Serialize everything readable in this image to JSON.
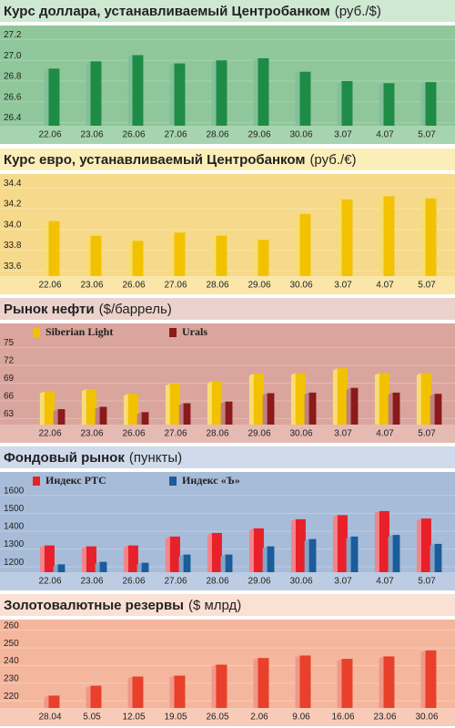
{
  "chart_data": [
    {
      "type": "bar",
      "title": "Курс доллара, устанавливаемый Центробанком",
      "unit": "(руб./$)",
      "categories": [
        "22.06",
        "23.06",
        "26.06",
        "27.06",
        "28.06",
        "29.06",
        "30.06",
        "3.07",
        "4.07",
        "5.07"
      ],
      "values": [
        26.92,
        26.99,
        27.05,
        26.97,
        27.0,
        27.02,
        26.89,
        26.8,
        26.78,
        26.79
      ],
      "color": "#1e8c46",
      "ylim": [
        26.37,
        27.3
      ],
      "yticks": [
        26.4,
        26.6,
        26.8,
        {
          "value": 27,
          "label": "27.0"
        },
        27.2
      ]
    },
    {
      "type": "bar",
      "title": "Курс евро, устанавливаемый Центробанком",
      "unit": "(руб./€)",
      "categories": [
        "22.06",
        "23.06",
        "26.06",
        "27.06",
        "28.06",
        "29.06",
        "30.06",
        "3.07",
        "4.07",
        "5.07"
      ],
      "values": [
        34.08,
        33.94,
        33.89,
        33.97,
        33.94,
        33.9,
        34.15,
        34.29,
        34.32,
        34.3
      ],
      "color": "#f2c200",
      "ylim": [
        33.55,
        34.5
      ],
      "yticks": [
        33.6,
        33.8,
        {
          "value": 34,
          "label": "34.0"
        },
        34.2,
        34.4
      ]
    },
    {
      "type": "bar",
      "title": "Рынок нефти",
      "unit": "($/баррель)",
      "categories": [
        "22.06",
        "23.06",
        "26.06",
        "27.06",
        "28.06",
        "29.06",
        "30.06",
        "3.07",
        "4.07",
        "5.07"
      ],
      "series": [
        {
          "name": "Siberian Light",
          "color": "#f2c200",
          "values": [
            67.6,
            68,
            67.2,
            68.9,
            69.3,
            70.6,
            70.7,
            71.5,
            70.7,
            70.7
          ]
        },
        {
          "name": "Urals",
          "color": "#8b1a1a",
          "values": [
            64.6,
            65,
            64.1,
            65.6,
            65.9,
            67.3,
            67.4,
            68.2,
            67.4,
            67.2
          ]
        }
      ],
      "ylim": [
        62,
        76
      ],
      "yticks": [
        63,
        66,
        69,
        72,
        75
      ]
    },
    {
      "type": "bar",
      "title": "Фондовый рынок",
      "unit": "(пункты)",
      "categories": [
        "22.06",
        "23.06",
        "26.06",
        "27.06",
        "28.06",
        "29.06",
        "30.06",
        "3.07",
        "4.07",
        "5.07"
      ],
      "series": [
        {
          "name": "Индекс РТС",
          "color": "#e8202a",
          "values": [
            1320,
            1315,
            1320,
            1370,
            1390,
            1416,
            1467,
            1490,
            1513,
            1471
          ]
        },
        {
          "name": "Индекс «Ъ»",
          "color": "#1b5c9a",
          "values": [
            1214,
            1228,
            1223,
            1269,
            1269,
            1315,
            1356,
            1370,
            1379,
            1329
          ]
        }
      ],
      "ylim": [
        1170,
        1630
      ],
      "yticks": [
        1200,
        1300,
        1400,
        1500,
        1600
      ]
    },
    {
      "type": "bar",
      "title": "Золотовалютные резервы",
      "unit": "($ млрд)",
      "categories": [
        "28.04",
        "5.05",
        "12.05",
        "19.05",
        "26.05",
        "2.06",
        "9.06",
        "16.06",
        "23.06",
        "30.06"
      ],
      "values": [
        223,
        228.6,
        233.8,
        234.3,
        240.5,
        244.3,
        245.7,
        243.8,
        245.2,
        248.6
      ],
      "color": "#e8402a",
      "ylim": [
        216,
        264
      ],
      "yticks": [
        220,
        230,
        240,
        250,
        260
      ]
    }
  ]
}
